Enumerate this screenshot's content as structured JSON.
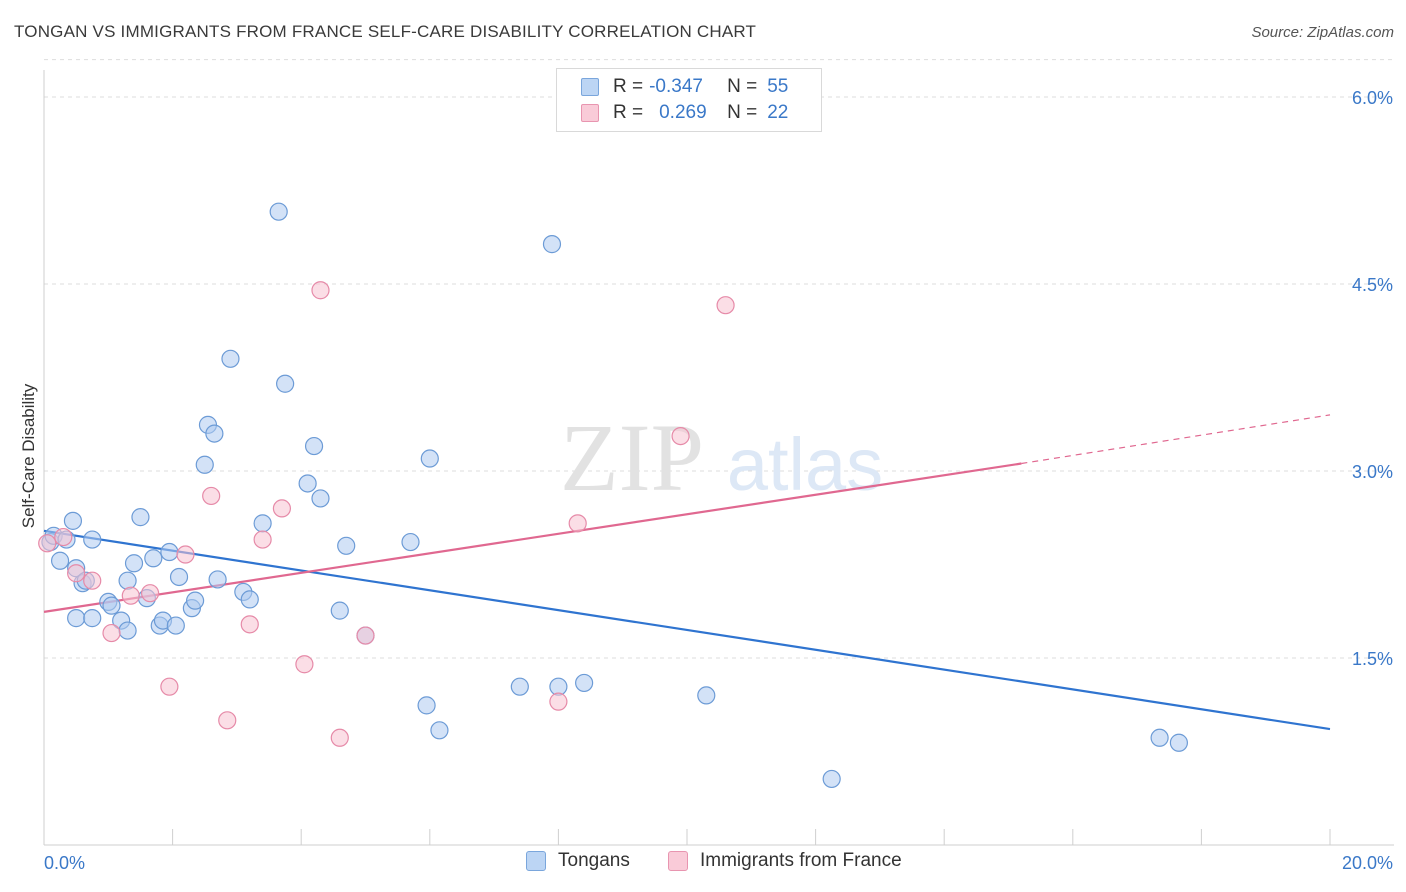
{
  "header": {
    "title": "TONGAN VS IMMIGRANTS FROM FRANCE SELF-CARE DISABILITY CORRELATION CHART",
    "source": "Source: ZipAtlas.com"
  },
  "watermark": {
    "zip": "ZIP",
    "atlas": "atlas"
  },
  "colors": {
    "tongans_fill": "#aecbf0",
    "tongans_stroke": "#6c9bd6",
    "tongans_line": "#2f74d0",
    "france_fill": "#f7c3d2",
    "france_stroke": "#e68aa8",
    "france_line": "#e06890",
    "axis_label": "#3a78c8",
    "grid": "#dddddd"
  },
  "legend": {
    "r_label": "R =",
    "n_label": "N =",
    "rows": [
      {
        "r": "-0.347",
        "n": "55"
      },
      {
        "r": "0.269",
        "n": "22"
      }
    ]
  },
  "chart_data": {
    "type": "scatter",
    "title": "TONGAN VS IMMIGRANTS FROM FRANCE SELF-CARE DISABILITY CORRELATION CHART",
    "ylabel": "Self-Care Disability",
    "xlabel": "",
    "xlim": [
      0,
      20
    ],
    "ylim": [
      0,
      6.3
    ],
    "x_tick_labels": [
      "0.0%",
      "20.0%"
    ],
    "y_ticks": [
      1.5,
      3.0,
      4.5,
      6.0
    ],
    "y_tick_labels": [
      "1.5%",
      "3.0%",
      "4.5%",
      "6.0%"
    ],
    "grid": "horizontal dashed",
    "legend_position": "top-center and bottom",
    "series": [
      {
        "name": "Tongans",
        "regression": {
          "x": [
            0,
            20
          ],
          "y": [
            2.52,
            0.93
          ]
        },
        "points": [
          [
            0.1,
            2.43
          ],
          [
            0.15,
            2.48
          ],
          [
            0.25,
            2.28
          ],
          [
            0.35,
            2.45
          ],
          [
            0.45,
            2.6
          ],
          [
            0.5,
            1.82
          ],
          [
            0.5,
            2.22
          ],
          [
            0.6,
            2.1
          ],
          [
            0.65,
            2.12
          ],
          [
            0.75,
            2.45
          ],
          [
            0.75,
            1.82
          ],
          [
            1.0,
            1.95
          ],
          [
            1.05,
            1.92
          ],
          [
            1.2,
            1.8
          ],
          [
            1.3,
            1.72
          ],
          [
            1.3,
            2.12
          ],
          [
            1.4,
            2.26
          ],
          [
            1.5,
            2.63
          ],
          [
            1.6,
            1.98
          ],
          [
            1.7,
            2.3
          ],
          [
            1.8,
            1.76
          ],
          [
            1.85,
            1.8
          ],
          [
            1.95,
            2.35
          ],
          [
            2.05,
            1.76
          ],
          [
            2.1,
            2.15
          ],
          [
            2.3,
            1.9
          ],
          [
            2.35,
            1.96
          ],
          [
            2.5,
            3.05
          ],
          [
            2.55,
            3.37
          ],
          [
            2.65,
            3.3
          ],
          [
            2.7,
            2.13
          ],
          [
            2.9,
            3.9
          ],
          [
            3.1,
            2.03
          ],
          [
            3.2,
            1.97
          ],
          [
            3.4,
            2.58
          ],
          [
            3.65,
            5.08
          ],
          [
            3.75,
            3.7
          ],
          [
            4.1,
            2.9
          ],
          [
            4.2,
            3.2
          ],
          [
            4.3,
            2.78
          ],
          [
            4.6,
            1.88
          ],
          [
            4.7,
            2.4
          ],
          [
            5.0,
            1.68
          ],
          [
            5.7,
            2.43
          ],
          [
            5.95,
            1.12
          ],
          [
            6.0,
            3.1
          ],
          [
            6.15,
            0.92
          ],
          [
            7.4,
            1.27
          ],
          [
            7.9,
            4.82
          ],
          [
            8.0,
            1.27
          ],
          [
            8.4,
            1.3
          ],
          [
            10.3,
            1.2
          ],
          [
            12.25,
            0.53
          ],
          [
            17.35,
            0.86
          ],
          [
            17.65,
            0.82
          ]
        ]
      },
      {
        "name": "Immigrants from France",
        "regression": {
          "x": [
            0,
            15.2
          ],
          "y": [
            1.87,
            3.06
          ],
          "dashed_to": [
            20,
            3.45
          ]
        },
        "points": [
          [
            0.05,
            2.42
          ],
          [
            0.3,
            2.47
          ],
          [
            0.5,
            2.18
          ],
          [
            0.75,
            2.12
          ],
          [
            1.05,
            1.7
          ],
          [
            1.35,
            2.0
          ],
          [
            1.65,
            2.02
          ],
          [
            1.95,
            1.27
          ],
          [
            2.2,
            2.33
          ],
          [
            2.6,
            2.8
          ],
          [
            2.85,
            1.0
          ],
          [
            3.2,
            1.77
          ],
          [
            3.4,
            2.45
          ],
          [
            3.7,
            2.7
          ],
          [
            4.05,
            1.45
          ],
          [
            4.3,
            4.45
          ],
          [
            4.6,
            0.86
          ],
          [
            5.0,
            1.68
          ],
          [
            8.0,
            1.15
          ],
          [
            8.3,
            2.58
          ],
          [
            9.9,
            3.28
          ],
          [
            10.6,
            4.33
          ]
        ]
      }
    ]
  },
  "bottom_legend": {
    "items": [
      {
        "label": "Tongans"
      },
      {
        "label": "Immigrants from France"
      }
    ]
  }
}
